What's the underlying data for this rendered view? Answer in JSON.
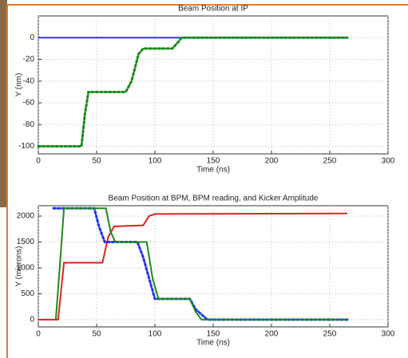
{
  "chart_data": [
    {
      "type": "line",
      "title": "Beam Position at IP",
      "x_label": "Time (ns)",
      "y_label": "Y (nm)",
      "xlim": [
        0,
        300
      ],
      "xticks": [
        0,
        50,
        100,
        150,
        200,
        250,
        300
      ],
      "ylim": [
        -107,
        20
      ],
      "yticks": [
        -100,
        -80,
        -60,
        -40,
        -20,
        0
      ],
      "grid": true,
      "series": [
        {
          "color": "#3333ee",
          "style": "line",
          "x": [
            0,
            120,
            265
          ],
          "values": [
            0,
            0,
            0
          ]
        },
        {
          "color": "#1a8a1a",
          "style": "dots",
          "x": [
            0,
            37,
            40,
            43,
            75,
            80,
            86,
            90,
            115,
            120,
            123,
            265
          ],
          "values": [
            -100,
            -100,
            -70,
            -50,
            -50,
            -40,
            -15,
            -10,
            -10,
            -4,
            0,
            0
          ]
        }
      ]
    },
    {
      "type": "line",
      "title": "Beam Position at BPM, BPM reading, and Kicker Amplitude",
      "x_label": "Time (ns)",
      "y_label": "Y (microns)",
      "xlim": [
        0,
        300
      ],
      "xticks": [
        0,
        50,
        100,
        150,
        200,
        250,
        300
      ],
      "ylim": [
        -140,
        2200
      ],
      "yticks": [
        0,
        500,
        1000,
        1500,
        2000
      ],
      "grid": true,
      "series": [
        {
          "color": "#e02020",
          "style": "line",
          "x": [
            0,
            17,
            22,
            55,
            60,
            65,
            90,
            95,
            100,
            265
          ],
          "values": [
            0,
            0,
            1100,
            1100,
            1600,
            1800,
            1820,
            2000,
            2040,
            2050
          ]
        },
        {
          "color": "#2233ee",
          "style": "dots",
          "x": [
            13,
            48,
            52,
            57,
            85,
            90,
            100,
            130,
            135,
            145,
            265
          ],
          "values": [
            2150,
            2150,
            1800,
            1500,
            1500,
            1200,
            400,
            400,
            200,
            0,
            0
          ]
        },
        {
          "color": "#1a8a1a",
          "style": "line",
          "x": [
            15,
            19,
            22,
            58,
            62,
            66,
            93,
            98,
            103,
            130,
            135,
            140,
            265
          ],
          "values": [
            0,
            1200,
            2150,
            2150,
            1700,
            1500,
            1500,
            800,
            400,
            400,
            150,
            0,
            0
          ]
        }
      ]
    }
  ]
}
